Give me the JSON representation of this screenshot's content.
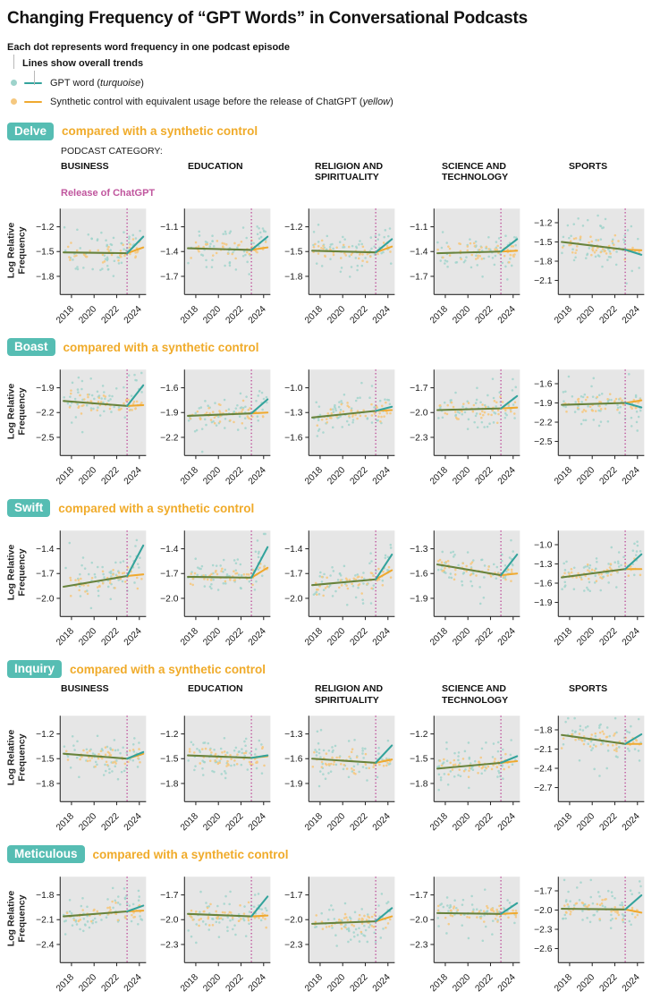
{
  "title": "Changing Frequency of “GPT Words” in Conversational Podcasts",
  "legend": {
    "dot_note": "Each dot represents word frequency in one podcast episode",
    "line_note": "Lines show overall trends",
    "items": [
      {
        "name": "gpt-word",
        "prefix": "GPT word (",
        "italic": "turquoise",
        "suffix": ")"
      },
      {
        "name": "synthetic-control",
        "prefix": "Synthetic control with equivalent usage before the release of ChatGPT (",
        "italic": "yellow",
        "suffix": ")"
      }
    ]
  },
  "colors": {
    "badge_bg": "#56bdb3",
    "subtitle_orange": "#f0ab2a",
    "release_magenta": "#c0569e",
    "gpt_line": "#33a39c",
    "gpt_dot": "#9dd3cb",
    "control_line": "#efa92f",
    "control_dot": "#f5c87f",
    "pre_trend_overlap": "#68833c",
    "plot_bg": "#e6e6e6",
    "axis": "#2b2b2b"
  },
  "chart_data": {
    "type": "scatter",
    "description": "Small-multiple scatter plots of log relative word frequency per podcast episode with piecewise linear trends; GPT word vs synthetic control, split at ChatGPT release (late 2022).",
    "ylabel": "Log Relative Frequency",
    "category_label": "PODCAST CATEGORY:",
    "release_label": "Release of ChatGPT",
    "categories": [
      "BUSINESS",
      "EDUCATION",
      "RELIGION AND\nSPIRITUALITY",
      "SCIENCE AND\nTECHNOLOGY",
      "SPORTS"
    ],
    "xticks": [
      2018,
      2020,
      2022,
      2024
    ],
    "x_range": [
      2017.3,
      2024.35
    ],
    "release_x": 2022.92,
    "sections": [
      {
        "word": "Delve",
        "subtitle": "compared with a synthetic control",
        "show_headers": true,
        "show_category_label": true,
        "show_release_label": true,
        "panels": [
          {
            "yticks": [
              -1.2,
              -1.5,
              -1.8
            ],
            "trend": {
              "start": -1.51,
              "release": -1.52,
              "gpt_end": -1.32,
              "control_end": -1.45
            }
          },
          {
            "yticks": [
              -1.1,
              -1.4,
              -1.7
            ],
            "trend": {
              "start": -1.36,
              "release": -1.38,
              "gpt_end": -1.22,
              "control_end": -1.35
            }
          },
          {
            "yticks": [
              -1.2,
              -1.5,
              -1.8
            ],
            "trend": {
              "start": -1.49,
              "release": -1.51,
              "gpt_end": -1.35,
              "control_end": -1.44
            }
          },
          {
            "yticks": [
              -1.1,
              -1.4,
              -1.7
            ],
            "trend": {
              "start": -1.42,
              "release": -1.4,
              "gpt_end": -1.25,
              "control_end": -1.39
            }
          },
          {
            "yticks": [
              -1.2,
              -1.5,
              -1.8,
              -2.1
            ],
            "trend": {
              "start": -1.5,
              "release": -1.62,
              "gpt_end": -1.7,
              "control_end": -1.63
            }
          }
        ]
      },
      {
        "word": "Boast",
        "subtitle": "compared with a synthetic control",
        "show_headers": false,
        "show_category_label": false,
        "show_release_label": false,
        "panels": [
          {
            "yticks": [
              -1.9,
              -2.2,
              -2.5
            ],
            "trend": {
              "start": -2.06,
              "release": -2.12,
              "gpt_end": -1.87,
              "control_end": -2.11
            }
          },
          {
            "yticks": [
              -1.6,
              -1.9,
              -2.2
            ],
            "trend": {
              "start": -1.94,
              "release": -1.91,
              "gpt_end": -1.74,
              "control_end": -1.9
            }
          },
          {
            "yticks": [
              -1.0,
              -1.3,
              -1.6
            ],
            "trend": {
              "start": -1.36,
              "release": -1.28,
              "gpt_end": -1.23,
              "control_end": -1.27
            }
          },
          {
            "yticks": [
              -1.7,
              -2.0,
              -2.3
            ],
            "trend": {
              "start": -1.97,
              "release": -1.95,
              "gpt_end": -1.8,
              "control_end": -1.94
            }
          },
          {
            "yticks": [
              -1.6,
              -1.9,
              -2.2,
              -2.5
            ],
            "trend": {
              "start": -1.93,
              "release": -1.9,
              "gpt_end": -1.97,
              "control_end": -1.86
            }
          }
        ]
      },
      {
        "word": "Swift",
        "subtitle": "compared with a synthetic control",
        "show_headers": false,
        "show_category_label": false,
        "show_release_label": false,
        "panels": [
          {
            "yticks": [
              -1.4,
              -1.7,
              -2.0
            ],
            "trend": {
              "start": -1.86,
              "release": -1.73,
              "gpt_end": -1.36,
              "control_end": -1.71
            }
          },
          {
            "yticks": [
              -1.4,
              -1.7,
              -2.0
            ],
            "trend": {
              "start": -1.74,
              "release": -1.75,
              "gpt_end": -1.38,
              "control_end": -1.63
            }
          },
          {
            "yticks": [
              -1.4,
              -1.7,
              -2.0
            ],
            "trend": {
              "start": -1.84,
              "release": -1.77,
              "gpt_end": -1.47,
              "control_end": -1.66
            }
          },
          {
            "yticks": [
              -1.3,
              -1.6,
              -1.9
            ],
            "trend": {
              "start": -1.49,
              "release": -1.62,
              "gpt_end": -1.37,
              "control_end": -1.6
            }
          },
          {
            "yticks": [
              -1.0,
              -1.3,
              -1.6,
              -1.9
            ],
            "trend": {
              "start": -1.51,
              "release": -1.38,
              "gpt_end": -1.15,
              "control_end": -1.38
            }
          }
        ]
      },
      {
        "word": "Inquiry",
        "subtitle": "compared with a synthetic control",
        "show_headers": true,
        "show_category_label": false,
        "show_release_label": false,
        "panels": [
          {
            "yticks": [
              -1.2,
              -1.5,
              -1.8
            ],
            "trend": {
              "start": -1.44,
              "release": -1.5,
              "gpt_end": -1.42,
              "control_end": -1.44
            }
          },
          {
            "yticks": [
              -1.2,
              -1.5,
              -1.8
            ],
            "trend": {
              "start": -1.46,
              "release": -1.49,
              "gpt_end": -1.46,
              "control_end": -1.47
            }
          },
          {
            "yticks": [
              -1.3,
              -1.6,
              -1.9
            ],
            "trend": {
              "start": -1.6,
              "release": -1.65,
              "gpt_end": -1.44,
              "control_end": -1.61
            }
          },
          {
            "yticks": [
              -1.2,
              -1.5,
              -1.8
            ],
            "trend": {
              "start": -1.62,
              "release": -1.55,
              "gpt_end": -1.47,
              "control_end": -1.53
            }
          },
          {
            "yticks": [
              -1.8,
              -2.1,
              -2.4,
              -2.7
            ],
            "trend": {
              "start": -1.88,
              "release": -2.02,
              "gpt_end": -1.87,
              "control_end": -2.02
            }
          }
        ]
      },
      {
        "word": "Meticulous",
        "subtitle": "compared with a synthetic control",
        "show_headers": false,
        "show_category_label": false,
        "show_release_label": false,
        "panels": [
          {
            "yticks": [
              -1.8,
              -2.1,
              -2.4
            ],
            "trend": {
              "start": -2.06,
              "release": -2.0,
              "gpt_end": -1.93,
              "control_end": -1.99
            }
          },
          {
            "yticks": [
              -1.7,
              -2.0,
              -2.3
            ],
            "trend": {
              "start": -1.93,
              "release": -1.96,
              "gpt_end": -1.72,
              "control_end": -1.95
            }
          },
          {
            "yticks": [
              -1.7,
              -2.0,
              -2.3
            ],
            "trend": {
              "start": -2.05,
              "release": -2.02,
              "gpt_end": -1.86,
              "control_end": -1.96
            }
          },
          {
            "yticks": [
              -1.7,
              -2.0,
              -2.3
            ],
            "trend": {
              "start": -1.92,
              "release": -1.93,
              "gpt_end": -1.8,
              "control_end": -1.92
            }
          },
          {
            "yticks": [
              -1.7,
              -2.0,
              -2.3,
              -2.6
            ],
            "trend": {
              "start": -1.98,
              "release": -1.99,
              "gpt_end": -1.77,
              "control_end": -2.04
            }
          }
        ]
      }
    ]
  }
}
